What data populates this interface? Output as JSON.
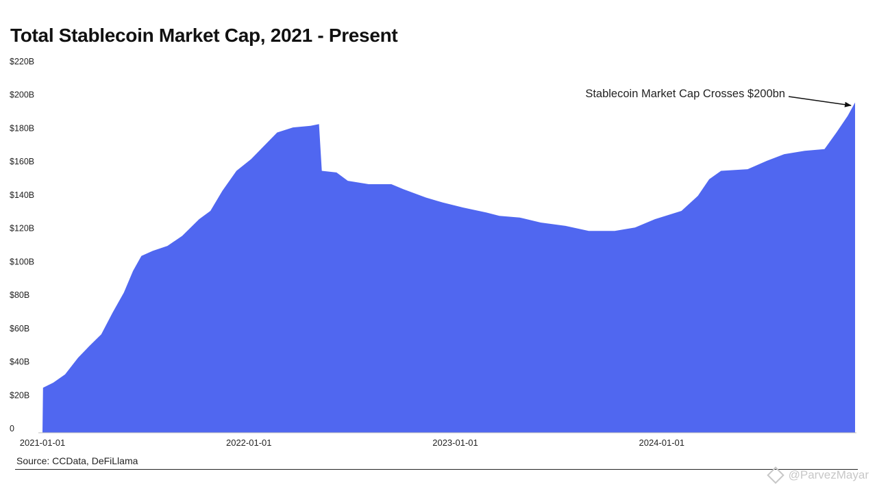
{
  "title": "Total Stablecoin Market Cap, 2021 - Present",
  "source": "Source: CCData, DeFiLlama",
  "watermark": "@ParvezMayar",
  "annotation": "Stablecoin Market Cap Crosses $200bn",
  "colors": {
    "area": "#5067f0",
    "text": "#222222",
    "watermark": "#c7c7c7"
  },
  "chart_data": {
    "type": "area",
    "title": "Total Stablecoin Market Cap, 2021 - Present",
    "ylim": [
      0,
      220
    ],
    "y_ticks": [
      0,
      20,
      40,
      60,
      80,
      100,
      120,
      140,
      160,
      180,
      200,
      220
    ],
    "y_tick_labels": [
      "0",
      "$20B",
      "$40B",
      "$60B",
      "$80B",
      "$100B",
      "$120B",
      "$140B",
      "$160B",
      "$180B",
      "$200B",
      "$220B"
    ],
    "x_ticks": [
      "2021-01-01",
      "2022-01-01",
      "2023-01-01",
      "2024-01-01"
    ],
    "x_range": [
      "2021-01-01",
      "2024-12-08"
    ],
    "grid": false,
    "legend": "none",
    "series": [
      {
        "unit": "$B",
        "points": [
          [
            "2021-01-01",
            0
          ],
          [
            "2021-01-02",
            27
          ],
          [
            "2021-01-20",
            30
          ],
          [
            "2021-02-10",
            35
          ],
          [
            "2021-03-05",
            45
          ],
          [
            "2021-03-25",
            52
          ],
          [
            "2021-04-15",
            59
          ],
          [
            "2021-05-05",
            72
          ],
          [
            "2021-05-25",
            84
          ],
          [
            "2021-06-10",
            97
          ],
          [
            "2021-06-25",
            106
          ],
          [
            "2021-07-15",
            109
          ],
          [
            "2021-08-10",
            112
          ],
          [
            "2021-09-05",
            118
          ],
          [
            "2021-10-05",
            128
          ],
          [
            "2021-10-25",
            133
          ],
          [
            "2021-11-15",
            145
          ],
          [
            "2021-12-10",
            157
          ],
          [
            "2022-01-05",
            164
          ],
          [
            "2022-01-25",
            171
          ],
          [
            "2022-02-20",
            180
          ],
          [
            "2022-03-20",
            183
          ],
          [
            "2022-04-20",
            184
          ],
          [
            "2022-05-05",
            185
          ],
          [
            "2022-05-10",
            157
          ],
          [
            "2022-06-05",
            156
          ],
          [
            "2022-06-25",
            151
          ],
          [
            "2022-08-01",
            149
          ],
          [
            "2022-09-10",
            149
          ],
          [
            "2022-10-01",
            146
          ],
          [
            "2022-11-10",
            141
          ],
          [
            "2022-12-10",
            138
          ],
          [
            "2023-01-15",
            135
          ],
          [
            "2023-02-25",
            132
          ],
          [
            "2023-03-20",
            130
          ],
          [
            "2023-04-25",
            129
          ],
          [
            "2023-06-01",
            126
          ],
          [
            "2023-07-15",
            124
          ],
          [
            "2023-08-25",
            121
          ],
          [
            "2023-10-10",
            121
          ],
          [
            "2023-11-15",
            123
          ],
          [
            "2023-12-20",
            128
          ],
          [
            "2024-02-05",
            133
          ],
          [
            "2024-03-05",
            142
          ],
          [
            "2024-03-25",
            152
          ],
          [
            "2024-04-15",
            157
          ],
          [
            "2024-06-01",
            158
          ],
          [
            "2024-07-05",
            163
          ],
          [
            "2024-08-05",
            167
          ],
          [
            "2024-09-10",
            169
          ],
          [
            "2024-10-15",
            170
          ],
          [
            "2024-11-05",
            180
          ],
          [
            "2024-11-25",
            190
          ],
          [
            "2024-12-08",
            198
          ]
        ]
      }
    ]
  }
}
